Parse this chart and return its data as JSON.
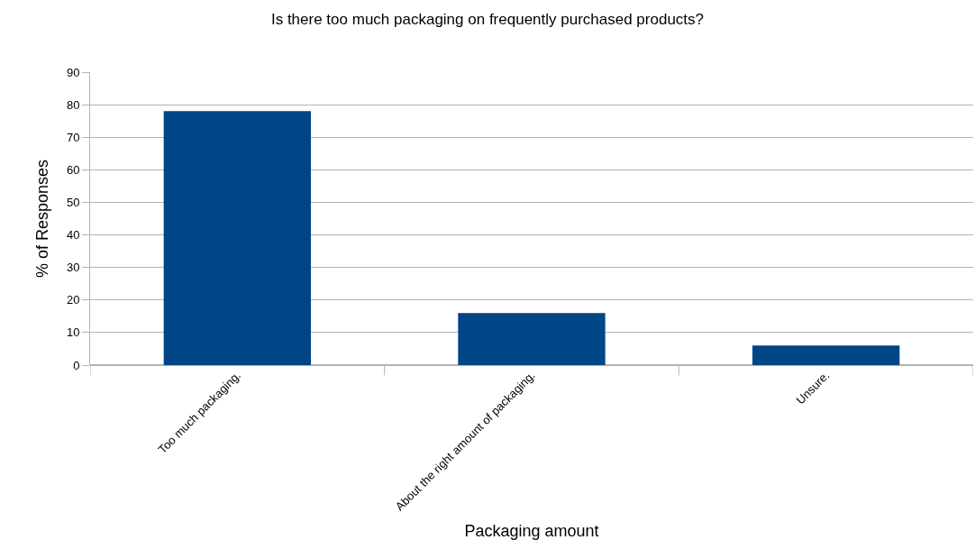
{
  "chart_data": {
    "type": "bar",
    "title": "Is there too much packaging on frequently purchased products?",
    "xlabel": "Packaging amount",
    "ylabel": "% of Responses",
    "categories": [
      "Too much packaging.",
      "About the right amount of packaging.",
      "Unsure."
    ],
    "values": [
      78,
      16,
      6
    ],
    "color": "#004586",
    "ylim": [
      0,
      90
    ],
    "yticks": [
      0,
      10,
      20,
      30,
      40,
      50,
      60,
      70,
      80,
      90
    ],
    "grid": "y",
    "legend": false
  }
}
